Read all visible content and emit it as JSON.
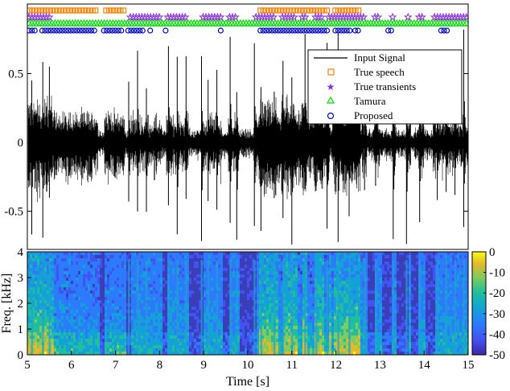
{
  "chart_data": [
    {
      "type": "line",
      "panel": "waveform",
      "xlim": [
        5,
        15
      ],
      "ylim": [
        -0.75,
        0.8
      ],
      "yticks": [
        0.5,
        0,
        -0.5
      ],
      "ytick_labels": [
        "0.5",
        "0",
        "-0.5"
      ],
      "grid": false,
      "legend_position": "top-right",
      "series": [
        {
          "name": "Input Signal",
          "kind": "line",
          "color": "#000000"
        },
        {
          "name": "True speech",
          "kind": "intervals",
          "color": "#ff8000",
          "marker": "square",
          "y": 0.96,
          "intervals": [
            [
              5.0,
              6.6
            ],
            [
              6.75,
              7.2
            ],
            [
              10.25,
              11.85
            ],
            [
              11.95,
              12.55
            ]
          ]
        },
        {
          "name": "True transients",
          "kind": "intervals",
          "color": "#8b2be2",
          "marker": "star",
          "y": 0.92,
          "intervals": [
            [
              5.0,
              5.55
            ],
            [
              7.3,
              8.05
            ],
            [
              8.15,
              8.65
            ],
            [
              8.95,
              9.4
            ],
            [
              9.55,
              9.8
            ],
            [
              10.15,
              10.65
            ],
            [
              10.75,
              11.1
            ],
            [
              11.2,
              11.35
            ],
            [
              11.5,
              11.7
            ],
            [
              11.8,
              12.7
            ],
            [
              12.85,
              13.0
            ],
            [
              13.25,
              13.35
            ],
            [
              13.6,
              13.7
            ],
            [
              13.85,
              14.0
            ],
            [
              14.2,
              15.0
            ]
          ]
        },
        {
          "name": "Tamura",
          "kind": "intervals",
          "color": "#00dd00",
          "marker": "triangle",
          "y": 0.88,
          "intervals": [
            [
              5.0,
              15.0
            ]
          ]
        },
        {
          "name": "Proposed",
          "kind": "intervals",
          "color": "#0000cc",
          "marker": "circle",
          "y": 0.84,
          "intervals": [
            [
              5.0,
              5.25
            ],
            [
              5.3,
              6.6
            ],
            [
              6.7,
              7.2
            ],
            [
              7.25,
              7.65
            ],
            [
              7.75,
              7.85
            ],
            [
              8.1,
              8.2
            ],
            [
              8.55,
              8.6
            ],
            [
              9.35,
              9.45
            ],
            [
              10.25,
              11.85
            ],
            [
              11.95,
              12.35
            ],
            [
              12.4,
              12.55
            ],
            [
              13.15,
              13.3
            ],
            [
              14.35,
              14.55
            ]
          ]
        }
      ],
      "legend": [
        "Input Signal",
        "True speech",
        "True transients",
        "Tamura",
        "Proposed"
      ]
    },
    {
      "type": "heatmap",
      "panel": "spectrogram",
      "xlim": [
        5,
        15
      ],
      "ylim": [
        0,
        4
      ],
      "xticks": [
        5,
        6,
        7,
        8,
        9,
        10,
        11,
        12,
        13,
        14,
        15
      ],
      "xtick_labels": [
        "5",
        "6",
        "7",
        "8",
        "9",
        "10",
        "11",
        "12",
        "13",
        "14",
        "15"
      ],
      "yticks": [
        0,
        1,
        2,
        3,
        4
      ],
      "ytick_labels": [
        "0",
        "1",
        "2",
        "3",
        "4"
      ],
      "xlabel": "Time [s]",
      "ylabel": "Freq. [kHz]",
      "colorbar": {
        "range": [
          -50,
          0
        ],
        "ticks": [
          0,
          -10,
          -20,
          -30,
          -40,
          -50
        ],
        "tick_labels": [
          "0",
          "-10",
          "-20",
          "-30",
          "-40",
          "-50"
        ],
        "colormap": "parula"
      }
    }
  ]
}
